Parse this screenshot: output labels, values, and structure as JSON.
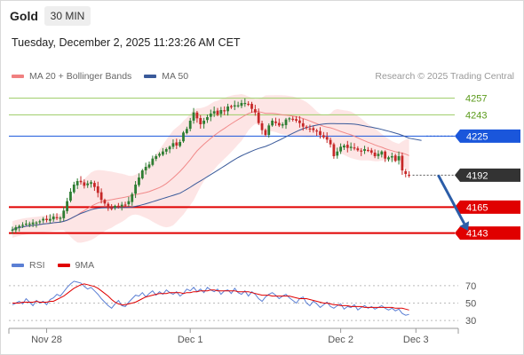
{
  "header": {
    "title": "Gold",
    "timeframe": "30 MIN",
    "timestamp": "Tuesday, December 2, 2025 11:23:26 AM CET",
    "credit": "Research © 2025 Trading Central"
  },
  "colors": {
    "up_candle": "#2e7d32",
    "down_candle": "#c62828",
    "bollinger_fill": "#fde0e0",
    "ma20": "#f08080",
    "ma50": "#3a5a9a",
    "resistance_line": "#9ccc65",
    "resistance_text": "#5a9a1a",
    "pivot_line": "#1a56db",
    "support_line": "#e00000",
    "last_price_bg": "#333333",
    "forecast_arrow": "#2b5da8",
    "rsi_line": "#5b7fd4",
    "rsi_ma_line": "#e00000"
  },
  "chart_data": [
    {
      "type": "candlestick",
      "legend": [
        {
          "name": "MA 20 + Bollinger Bands",
          "color": "#f08080"
        },
        {
          "name": "MA 50",
          "color": "#3a5a9a"
        }
      ],
      "x_ticks": [
        "Nov 28",
        "Dec 1",
        "Dec 2",
        "Dec 3"
      ],
      "x_tick_index": [
        10,
        52,
        96,
        118
      ],
      "ylim": [
        4130,
        4268
      ],
      "levels": [
        {
          "value": 4257,
          "label": "4257",
          "kind": "resistance"
        },
        {
          "value": 4243,
          "label": "4243",
          "kind": "resistance"
        },
        {
          "value": 4225,
          "label": "4225",
          "kind": "pivot"
        },
        {
          "value": 4192,
          "label": "4192",
          "kind": "last"
        },
        {
          "value": 4165,
          "label": "4165",
          "kind": "support"
        },
        {
          "value": 4143,
          "label": "4143",
          "kind": "support"
        }
      ],
      "forecast": {
        "from_index": 124,
        "from_value": 4192,
        "to_index": 133,
        "to_value": 4145
      },
      "closes": [
        4146,
        4148,
        4149,
        4150,
        4151,
        4151,
        4152,
        4152,
        4153,
        4155,
        4154,
        4155,
        4157,
        4156,
        4156,
        4162,
        4170,
        4178,
        4184,
        4187,
        4186,
        4183,
        4185,
        4186,
        4182,
        4177,
        4171,
        4168,
        4164,
        4164,
        4166,
        4165,
        4167,
        4167,
        4170,
        4176,
        4184,
        4190,
        4196,
        4199,
        4201,
        4206,
        4208,
        4210,
        4212,
        4214,
        4216,
        4219,
        4217,
        4220,
        4228,
        4231,
        4238,
        4245,
        4240,
        4235,
        4238,
        4241,
        4244,
        4246,
        4243,
        4247,
        4246,
        4250,
        4250,
        4251,
        4251,
        4253,
        4253,
        4252,
        4248,
        4245,
        4236,
        4230,
        4226,
        4234,
        4238,
        4236,
        4234,
        4235,
        4239,
        4240,
        4239,
        4238,
        4236,
        4233,
        4232,
        4231,
        4230,
        4229,
        4226,
        4224,
        4222,
        4218,
        4208,
        4212,
        4216,
        4217,
        4215,
        4216,
        4215,
        4213,
        4212,
        4214,
        4213,
        4211,
        4208,
        4210,
        4212,
        4206,
        4207,
        4208,
        4204,
        4208,
        4196,
        4193,
        4192
      ],
      "rsi_legend": [
        {
          "name": "RSI",
          "color": "#5b7fd4"
        },
        {
          "name": "9MA",
          "color": "#e00000"
        }
      ],
      "rsi_levels": [
        70,
        50,
        30
      ],
      "rsi_ylim": [
        25,
        80
      ],
      "rsi": [
        48,
        50,
        52,
        49,
        55,
        51,
        47,
        53,
        50,
        52,
        48,
        54,
        56,
        60,
        58,
        63,
        68,
        72,
        75,
        74,
        73,
        69,
        66,
        68,
        64,
        60,
        55,
        51,
        47,
        44,
        49,
        53,
        47,
        46,
        51,
        55,
        59,
        58,
        62,
        57,
        61,
        64,
        59,
        63,
        60,
        65,
        62,
        60,
        63,
        58,
        61,
        66,
        64,
        68,
        63,
        66,
        62,
        68,
        65,
        63,
        66,
        60,
        64,
        65,
        61,
        67,
        62,
        60,
        64,
        58,
        63,
        60,
        55,
        52,
        57,
        60,
        62,
        59,
        55,
        58,
        60,
        56,
        53,
        50,
        55,
        57,
        50,
        47,
        52,
        49,
        45,
        48,
        51,
        46,
        44,
        47,
        49,
        43,
        46,
        45,
        48,
        42,
        45,
        47,
        44,
        46,
        43,
        45,
        47,
        44,
        42,
        44,
        41,
        43,
        38,
        36,
        37
      ],
      "rsi_ma": [
        50,
        50,
        50,
        51,
        51,
        51,
        51,
        52,
        51,
        51,
        51,
        52,
        52,
        54,
        56,
        58,
        61,
        64,
        67,
        69,
        71,
        72,
        71,
        70,
        69,
        67,
        64,
        61,
        58,
        54,
        51,
        49,
        48,
        48,
        49,
        50,
        51,
        53,
        55,
        57,
        58,
        59,
        60,
        61,
        61,
        61,
        62,
        62,
        62,
        62,
        61,
        62,
        62,
        63,
        63,
        64,
        64,
        64,
        65,
        65,
        64,
        64,
        64,
        64,
        64,
        64,
        63,
        63,
        63,
        63,
        62,
        61,
        60,
        59,
        59,
        59,
        58,
        58,
        58,
        58,
        58,
        58,
        57,
        56,
        55,
        55,
        55,
        54,
        53,
        52,
        51,
        50,
        50,
        49,
        48,
        48,
        47,
        47,
        47,
        46,
        46,
        46,
        46,
        45,
        45,
        45,
        45,
        45,
        45,
        45,
        45,
        45,
        44,
        44,
        44,
        43,
        42
      ]
    }
  ]
}
